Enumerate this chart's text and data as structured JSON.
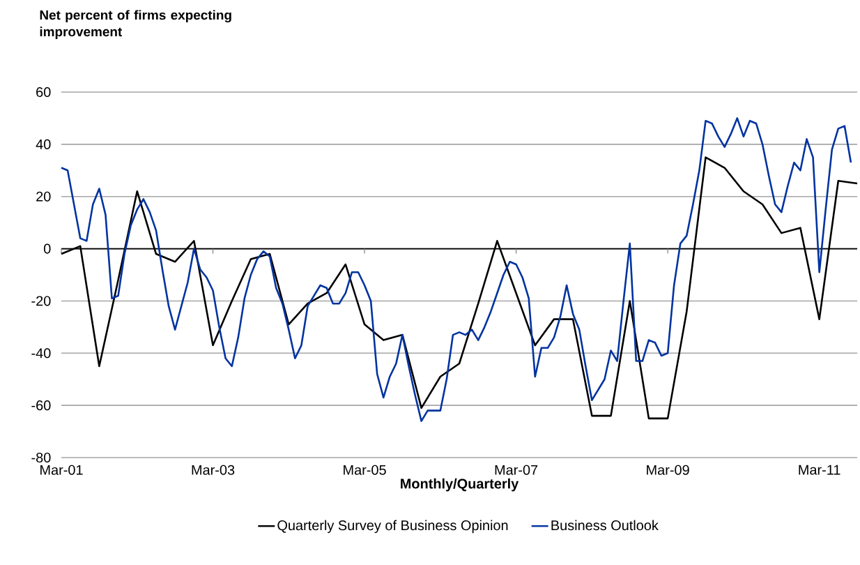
{
  "chart_data": {
    "type": "line",
    "ylabel": "Net percent of firms expecting improvement",
    "xlabel": "Monthly/Quarterly",
    "xlim": [
      "2001-03",
      "2011-09"
    ],
    "xticks": [
      {
        "value": "2001-03",
        "label": "Mar-01"
      },
      {
        "value": "2003-03",
        "label": "Mar-03"
      },
      {
        "value": "2005-03",
        "label": "Mar-05"
      },
      {
        "value": "2007-03",
        "label": "Mar-07"
      },
      {
        "value": "2009-03",
        "label": "Mar-09"
      },
      {
        "value": "2011-03",
        "label": "Mar-11"
      }
    ],
    "ylim": [
      -80,
      60
    ],
    "yticks": [
      -80,
      -60,
      -40,
      -20,
      0,
      20,
      40,
      60
    ],
    "grid": "y",
    "legend": "bottom",
    "series": [
      {
        "name": "Quarterly Survey of Business Opinion",
        "color": "#000000",
        "x": [
          "2001-03",
          "2001-06",
          "2001-09",
          "2001-12",
          "2002-03",
          "2002-06",
          "2002-09",
          "2002-12",
          "2003-03",
          "2003-06",
          "2003-09",
          "2003-12",
          "2004-03",
          "2004-06",
          "2004-09",
          "2004-12",
          "2005-03",
          "2005-06",
          "2005-09",
          "2005-12",
          "2006-03",
          "2006-06",
          "2006-09",
          "2006-12",
          "2007-03",
          "2007-06",
          "2007-09",
          "2007-12",
          "2008-03",
          "2008-06",
          "2008-09",
          "2008-12",
          "2009-03",
          "2009-06",
          "2009-09",
          "2009-12",
          "2010-03",
          "2010-06",
          "2010-09",
          "2010-12",
          "2011-03",
          "2011-06",
          "2011-09"
        ],
        "values": [
          -2,
          1,
          -45,
          -12,
          22,
          -2,
          -5,
          3,
          -37,
          -20,
          -4,
          -2,
          -29,
          -21,
          -17,
          -6,
          -29,
          -35,
          -33,
          -61,
          -49,
          -44,
          -21,
          3,
          -17,
          -37,
          -27,
          -27,
          -64,
          -64,
          -20,
          -65,
          -65,
          -24,
          35,
          31,
          22,
          17,
          6,
          8,
          -27,
          26,
          25
        ]
      },
      {
        "name": "Business Outlook",
        "color": "#0033a0",
        "x": [
          "2001-03",
          "2001-04",
          "2001-05",
          "2001-06",
          "2001-07",
          "2001-08",
          "2001-09",
          "2001-10",
          "2001-11",
          "2001-12",
          "2002-01",
          "2002-02",
          "2002-03",
          "2002-04",
          "2002-05",
          "2002-06",
          "2002-07",
          "2002-08",
          "2002-09",
          "2002-10",
          "2002-11",
          "2002-12",
          "2003-01",
          "2003-02",
          "2003-03",
          "2003-04",
          "2003-05",
          "2003-06",
          "2003-07",
          "2003-08",
          "2003-09",
          "2003-10",
          "2003-11",
          "2003-12",
          "2004-01",
          "2004-02",
          "2004-03",
          "2004-04",
          "2004-05",
          "2004-06",
          "2004-07",
          "2004-08",
          "2004-09",
          "2004-10",
          "2004-11",
          "2004-12",
          "2005-01",
          "2005-02",
          "2005-03",
          "2005-04",
          "2005-05",
          "2005-06",
          "2005-07",
          "2005-08",
          "2005-09",
          "2005-10",
          "2005-11",
          "2005-12",
          "2006-01",
          "2006-02",
          "2006-03",
          "2006-04",
          "2006-05",
          "2006-06",
          "2006-07",
          "2006-08",
          "2006-09",
          "2006-10",
          "2006-11",
          "2006-12",
          "2007-01",
          "2007-02",
          "2007-03",
          "2007-04",
          "2007-05",
          "2007-06",
          "2007-07",
          "2007-08",
          "2007-09",
          "2007-10",
          "2007-11",
          "2007-12",
          "2008-01",
          "2008-02",
          "2008-03",
          "2008-04",
          "2008-05",
          "2008-06",
          "2008-07",
          "2008-08",
          "2008-09",
          "2008-10",
          "2008-11",
          "2008-12",
          "2009-01",
          "2009-02",
          "2009-03",
          "2009-04",
          "2009-05",
          "2009-06",
          "2009-07",
          "2009-08",
          "2009-09",
          "2009-10",
          "2009-11",
          "2009-12",
          "2010-01",
          "2010-02",
          "2010-03",
          "2010-04",
          "2010-05",
          "2010-06",
          "2010-07",
          "2010-08",
          "2010-09",
          "2010-10",
          "2010-11",
          "2010-12",
          "2011-01",
          "2011-02",
          "2011-03",
          "2011-04",
          "2011-05",
          "2011-06",
          "2011-07",
          "2011-08"
        ],
        "values": [
          31,
          30,
          17,
          4,
          3,
          17,
          23,
          13,
          -19,
          -18,
          -2,
          9,
          15,
          19,
          14,
          7,
          -8,
          -22,
          -31,
          -22,
          -13,
          0,
          -8,
          -11,
          -16,
          -30,
          -42,
          -45,
          -34,
          -19,
          -10,
          -4,
          -1,
          -3,
          -15,
          -21,
          -31,
          -42,
          -37,
          -22,
          -18,
          -14,
          -15,
          -21,
          -21,
          -17,
          -9,
          -9,
          -14,
          -20,
          -48,
          -57,
          -49,
          -44,
          -33,
          -45,
          -56,
          -66,
          -62,
          -62,
          -62,
          -50,
          -33,
          -32,
          -33,
          -31,
          -35,
          -30,
          -24,
          -17,
          -10,
          -5,
          -6,
          -11,
          -19,
          -49,
          -38,
          -38,
          -34,
          -26,
          -14,
          -25,
          -31,
          -45,
          -58,
          -54,
          -50,
          -39,
          -43,
          -20,
          2,
          -43,
          -43,
          -35,
          -36,
          -41,
          -40,
          -14,
          2,
          5,
          17,
          30,
          49,
          48,
          43,
          39,
          44,
          50,
          43,
          49,
          48,
          40,
          28,
          17,
          14,
          24,
          33,
          30,
          42,
          35,
          -9,
          15,
          38,
          46,
          47,
          33
        ]
      }
    ]
  }
}
